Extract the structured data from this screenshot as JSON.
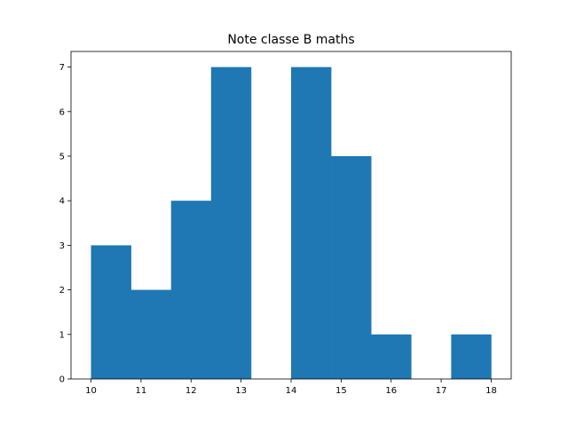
{
  "chart_data": {
    "type": "bar",
    "title": "Note classe B maths",
    "xlabel": "",
    "ylabel": "",
    "bin_edges": [
      10,
      10.8,
      11.6,
      12.4,
      13.2,
      14.0,
      14.8,
      15.6,
      16.4,
      17.2,
      18.0
    ],
    "values": [
      3,
      2,
      4,
      7,
      0,
      7,
      5,
      1,
      0,
      1
    ],
    "xlim": [
      9.6,
      18.4
    ],
    "ylim": [
      0,
      7.35
    ],
    "xticks": [
      10,
      11,
      12,
      13,
      14,
      15,
      16,
      17,
      18
    ],
    "yticks": [
      0,
      1,
      2,
      3,
      4,
      5,
      6,
      7
    ],
    "bar_color": "#1f77b4",
    "grid": false
  }
}
